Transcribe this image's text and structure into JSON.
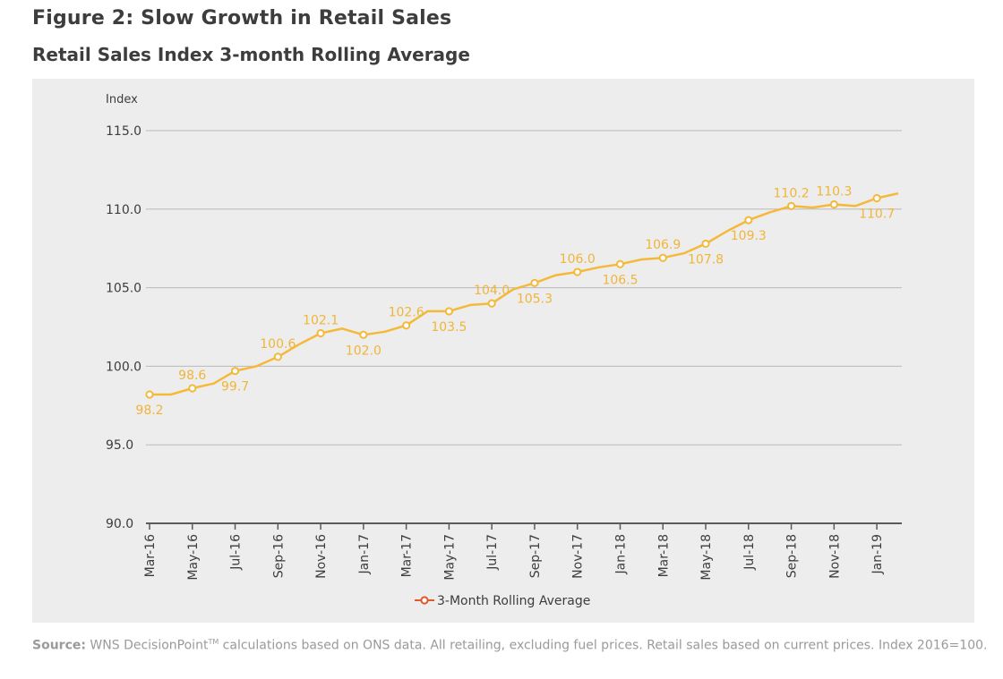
{
  "header": {
    "title": "Figure 2: Slow Growth in Retail Sales",
    "subtitle": "Retail Sales Index 3-month Rolling Average"
  },
  "source": {
    "label": "Source:",
    "brand": "WNS DecisionPoint",
    "trademark": "TM",
    "text": " calculations based on ONS data. All retailing, excluding fuel prices. Retail sales based on current prices. Index 2016=100."
  },
  "colors": {
    "series": "#f5b93a",
    "label": "#f0b53a",
    "legend_marker": "#e0592a",
    "grid": "#b9b9b9",
    "axis": "#5a5a5a",
    "panel": "#ededed"
  },
  "chart_data": {
    "type": "line",
    "title": "Retail Sales Index 3-month Rolling Average",
    "ylabel": "Index",
    "xlabel": "",
    "ylim": [
      90,
      115
    ],
    "yticks": [
      90,
      95,
      100,
      105,
      110,
      115
    ],
    "ytick_labels": [
      "90.0",
      "95.0",
      "100.0",
      "105.0",
      "110.0",
      "115.0"
    ],
    "grid": true,
    "legend_position": "bottom-center",
    "categories": [
      "Mar-16",
      "Apr-16",
      "May-16",
      "Jun-16",
      "Jul-16",
      "Aug-16",
      "Sep-16",
      "Oct-16",
      "Nov-16",
      "Dec-16",
      "Jan-17",
      "Feb-17",
      "Mar-17",
      "Apr-17",
      "May-17",
      "Jun-17",
      "Jul-17",
      "Aug-17",
      "Sep-17",
      "Oct-17",
      "Nov-17",
      "Dec-17",
      "Jan-18",
      "Feb-18",
      "Mar-18",
      "Apr-18",
      "May-18",
      "Jun-18",
      "Jul-18",
      "Aug-18",
      "Sep-18",
      "Oct-18",
      "Nov-18",
      "Dec-18",
      "Jan-19",
      "Feb-19"
    ],
    "x_tick_labels": [
      "Mar-16",
      "May-16",
      "Jul-16",
      "Sep-16",
      "Nov-16",
      "Jan-17",
      "Mar-17",
      "May-17",
      "Jul-17",
      "Sep-17",
      "Nov-17",
      "Jan-18",
      "Mar-18",
      "May-18",
      "Jul-18",
      "Sep-18",
      "Nov-18",
      "Jan-19"
    ],
    "series": [
      {
        "name": "3-Month Rolling Average",
        "values": [
          98.2,
          98.2,
          98.6,
          98.9,
          99.7,
          100.0,
          100.6,
          101.4,
          102.1,
          102.4,
          102.0,
          102.2,
          102.6,
          103.5,
          103.5,
          103.9,
          104.0,
          104.9,
          105.3,
          105.8,
          106.0,
          106.3,
          106.5,
          106.8,
          106.9,
          107.2,
          107.8,
          108.6,
          109.3,
          109.8,
          110.2,
          110.1,
          110.3,
          110.2,
          110.7,
          111.0
        ],
        "markers": [
          {
            "category": "Mar-16",
            "value": 98.2,
            "label": "98.2",
            "label_pos": "below"
          },
          {
            "category": "May-16",
            "value": 98.6,
            "label": "98.6",
            "label_pos": "above"
          },
          {
            "category": "Jul-16",
            "value": 99.7,
            "label": "99.7",
            "label_pos": "below"
          },
          {
            "category": "Sep-16",
            "value": 100.6,
            "label": "100.6",
            "label_pos": "above"
          },
          {
            "category": "Nov-16",
            "value": 102.1,
            "label": "102.1",
            "label_pos": "above"
          },
          {
            "category": "Jan-17",
            "value": 102.0,
            "label": "102.0",
            "label_pos": "below"
          },
          {
            "category": "Mar-17",
            "value": 102.6,
            "label": "102.6",
            "label_pos": "above"
          },
          {
            "category": "May-17",
            "value": 103.5,
            "label": "103.5",
            "label_pos": "below"
          },
          {
            "category": "Jul-17",
            "value": 104.0,
            "label": "104.0",
            "label_pos": "above"
          },
          {
            "category": "Sep-17",
            "value": 105.3,
            "label": "105.3",
            "label_pos": "below"
          },
          {
            "category": "Nov-17",
            "value": 106.0,
            "label": "106.0",
            "label_pos": "above"
          },
          {
            "category": "Jan-18",
            "value": 106.5,
            "label": "106.5",
            "label_pos": "below"
          },
          {
            "category": "Mar-18",
            "value": 106.9,
            "label": "106.9",
            "label_pos": "above"
          },
          {
            "category": "May-18",
            "value": 107.8,
            "label": "107.8",
            "label_pos": "below"
          },
          {
            "category": "Jul-18",
            "value": 109.3,
            "label": "109.3",
            "label_pos": "below"
          },
          {
            "category": "Sep-18",
            "value": 110.2,
            "label": "110.2",
            "label_pos": "above"
          },
          {
            "category": "Nov-18",
            "value": 110.3,
            "label": "110.3",
            "label_pos": "above"
          },
          {
            "category": "Jan-19",
            "value": 110.7,
            "label": "110.7",
            "label_pos": "below"
          }
        ]
      }
    ]
  }
}
